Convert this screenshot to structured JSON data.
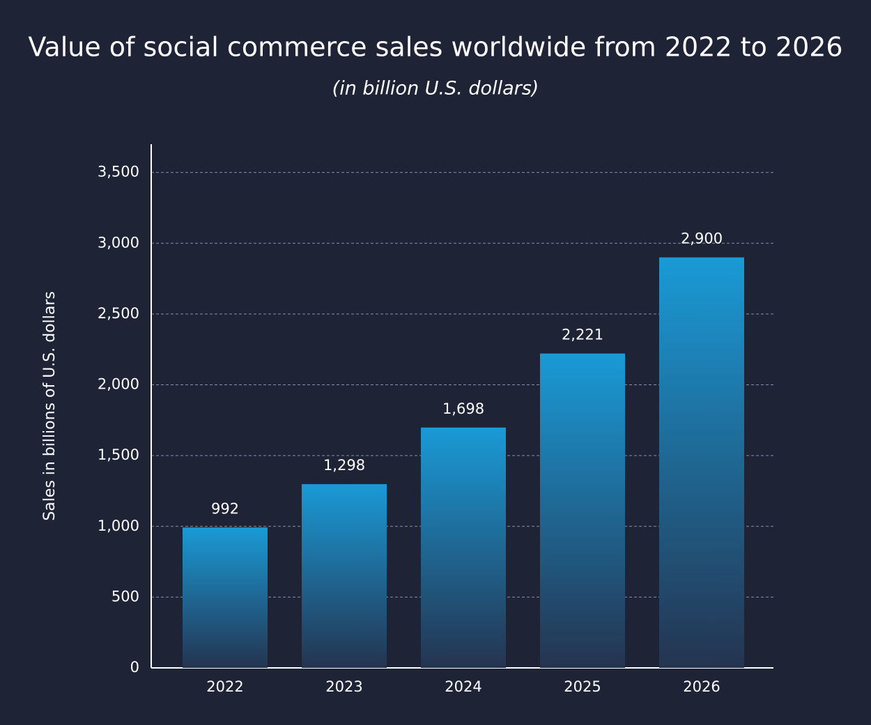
{
  "chart_data": {
    "type": "bar",
    "title": "Value of social commerce sales worldwide from 2022 to 2026",
    "subtitle": "(in billion U.S. dollars)",
    "y_label": "Sales in billions of U.S. dollars",
    "categories": [
      "2022",
      "2023",
      "2024",
      "2025",
      "2026"
    ],
    "values": [
      992,
      1298,
      1698,
      2221,
      2900
    ],
    "value_labels": [
      "992",
      "1,298",
      "1,698",
      "2,221",
      "2,900"
    ],
    "color": "#1a9ad6",
    "ylim": [
      0,
      3700
    ],
    "yticks": [
      0,
      500,
      {
        "value": 1000,
        "label": "1,000"
      },
      {
        "value": 1500,
        "label": "1,500"
      },
      {
        "value": 2000,
        "label": "2,000"
      },
      {
        "value": 2500,
        "label": "2,500"
      },
      {
        "value": 3000,
        "label": "3,000"
      },
      {
        "value": 3500,
        "label": "3,500"
      }
    ],
    "grid": true
  }
}
